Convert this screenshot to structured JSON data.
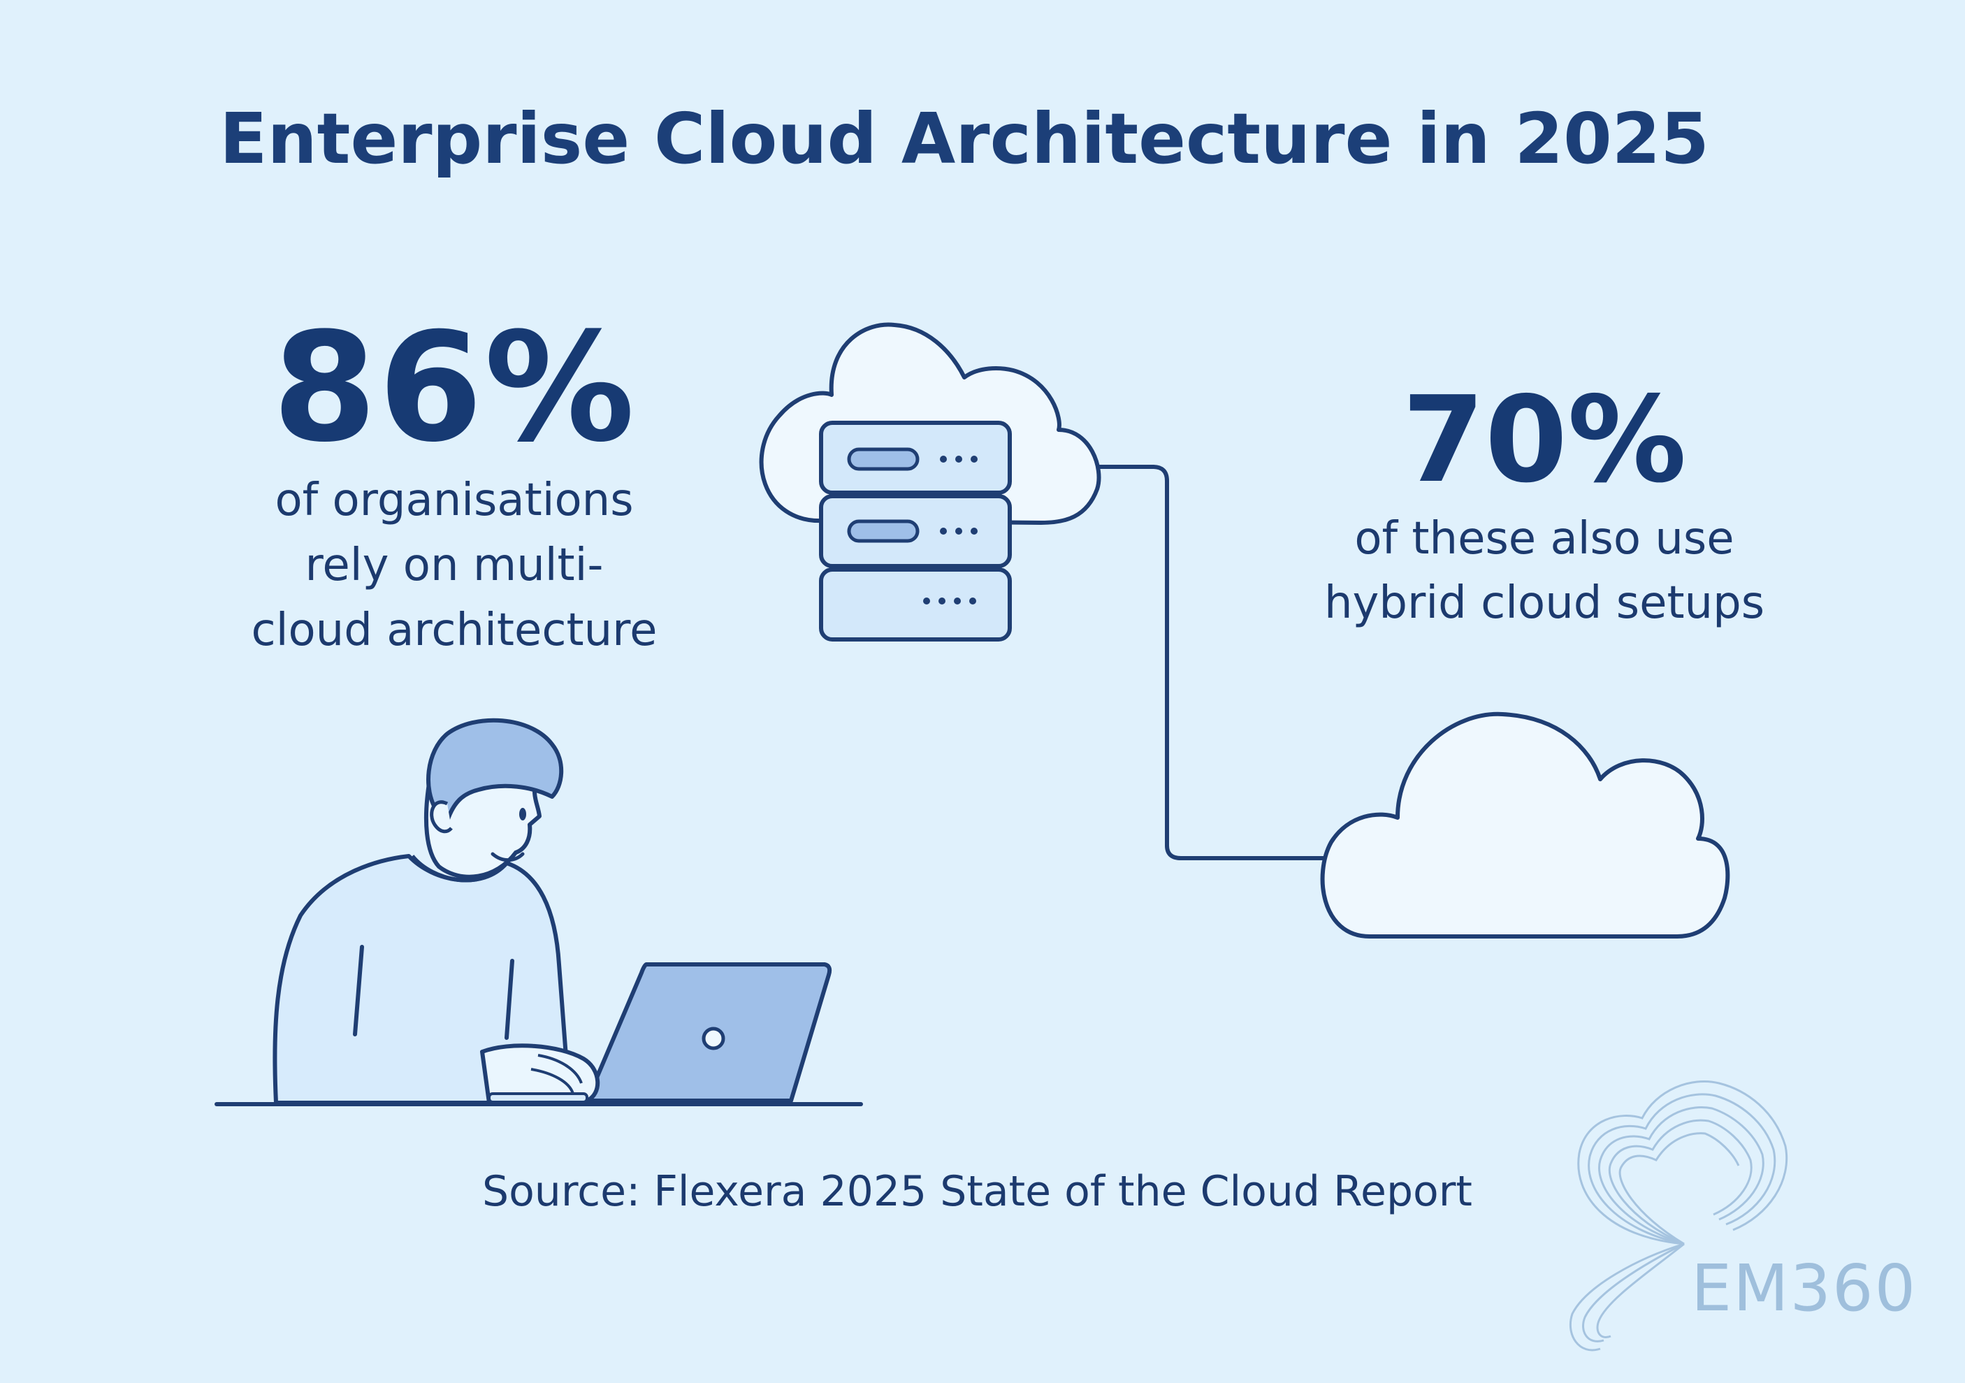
{
  "title": "Enterprise Cloud Architecture in 2025",
  "stat_primary": {
    "value": "86%",
    "lines": [
      "of organisations",
      "rely on multi-",
      "cloud architecture"
    ]
  },
  "stat_secondary": {
    "value": "70%",
    "lines": [
      "of these also use",
      "hybrid cloud setups"
    ]
  },
  "source": "Source: Flexera 2025 State of the Cloud Report",
  "logo": {
    "text": "EM360"
  },
  "colors": {
    "background": "#e0f1fc",
    "primary_text": "#173a73",
    "outline": "#1f3e73",
    "fill_light": "#d3e8fa",
    "fill_mid": "#9fbfe8",
    "logo": "#9fbfdc"
  },
  "icons": [
    "server-cloud-icon",
    "cloud-icon",
    "person-with-laptop-illustration",
    "em360-logo-icon"
  ]
}
